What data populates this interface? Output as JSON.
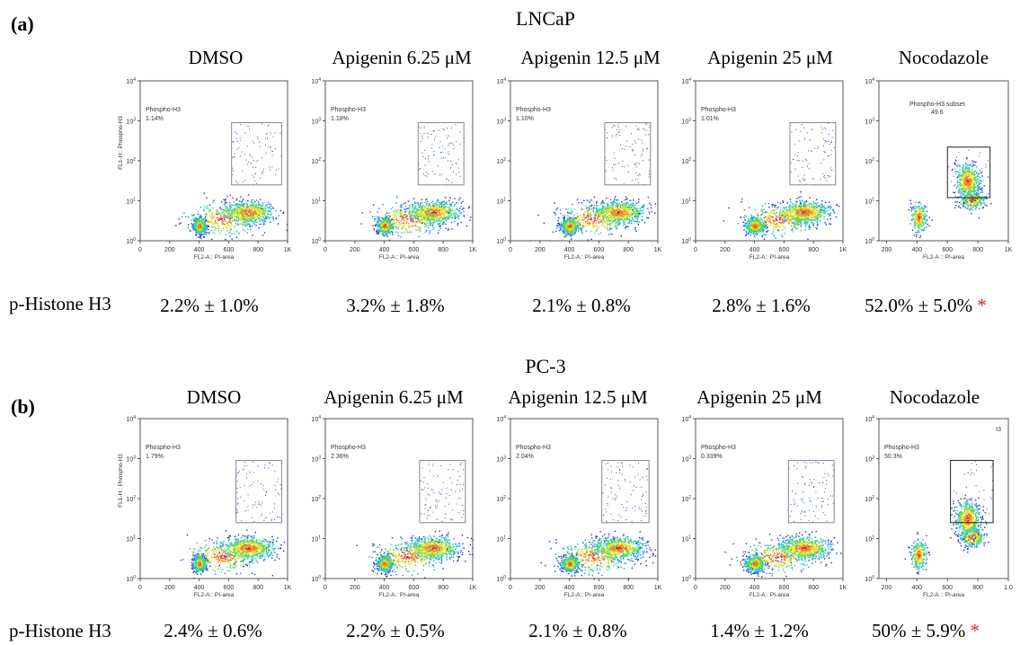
{
  "panels": [
    {
      "letter": "(a)",
      "cell_line": "LNCaP",
      "row_label": "p-Histone H3",
      "columns": [
        {
          "title": "DMSO",
          "value": "2.2%  ±  1.0%",
          "star": ""
        },
        {
          "title": "Apigenin 6.25 μM",
          "value": "3.2%  ±  1.8%",
          "star": ""
        },
        {
          "title": "Apigenin 12.5 μM",
          "value": "2.1% ±   0.8%",
          "star": ""
        },
        {
          "title": "Apigenin 25 μM",
          "value": "2.8%  ±  1.6%",
          "star": ""
        },
        {
          "title": "Nocodazole",
          "value": "52.0%  ±  5.0%",
          "star": "*"
        }
      ]
    },
    {
      "letter": "(b)",
      "cell_line": "PC-3",
      "row_label": "p-Histone H3",
      "columns": [
        {
          "title": "DMSO",
          "value": "2.4% ± 0.6%",
          "star": ""
        },
        {
          "title": "Apigenin 6.25 μM",
          "value": "2.2% ± 0.5%",
          "star": ""
        },
        {
          "title": "Apigenin 12.5 μM",
          "value": "2.1% ± 0.8%",
          "star": ""
        },
        {
          "title": "Apigenin 25 μM",
          "value": "1.4% ± 1.2%",
          "star": ""
        },
        {
          "title": "Nocodazole",
          "value": "50% ± 5.9%",
          "star": "*"
        }
      ]
    }
  ],
  "chart_data": [
    {
      "type": "scatter",
      "panel": "a",
      "title": "DMSO",
      "xlabel": "FL2-A:: PI-area",
      "ylabel": "FL1-H:: Phospho-H3",
      "gate_label": "Phospho-H3",
      "gate_value": "1.14%",
      "xlim": [
        0,
        1000
      ],
      "ylog": true,
      "xticks": [
        "0",
        "200",
        "400",
        "600",
        "800",
        "1K"
      ],
      "yticks": [
        "10^0",
        "10^1",
        "10^2",
        "10^3",
        "10^4"
      ],
      "gate_x": [
        620,
        960
      ],
      "gate_y": [
        25,
        900
      ]
    },
    {
      "type": "scatter",
      "panel": "a",
      "title": "Apigenin 6.25 μM",
      "xlabel": "FL2-A:: PI-area",
      "ylabel": "",
      "gate_label": "Phospho-H3",
      "gate_value": "1.18%",
      "xlim": [
        0,
        1000
      ],
      "ylog": true,
      "xticks": [
        "0",
        "200",
        "400",
        "600",
        "800",
        "1K"
      ],
      "yticks": [
        "10^0",
        "10^1",
        "10^2",
        "10^3",
        "10^4"
      ],
      "gate_x": [
        630,
        940
      ],
      "gate_y": [
        25,
        900
      ]
    },
    {
      "type": "scatter",
      "panel": "a",
      "title": "Apigenin 12.5 μM",
      "xlabel": "FL2-A:: PI-area",
      "ylabel": "",
      "gate_label": "Phospho-H3",
      "gate_value": "1.10%",
      "xlim": [
        0,
        1000
      ],
      "ylog": true,
      "xticks": [
        "0",
        "200",
        "400",
        "600",
        "800",
        "1K"
      ],
      "yticks": [
        "10^0",
        "10^1",
        "10^2",
        "10^3",
        "10^4"
      ],
      "gate_x": [
        640,
        950
      ],
      "gate_y": [
        25,
        900
      ]
    },
    {
      "type": "scatter",
      "panel": "a",
      "title": "Apigenin 25 μM",
      "xlabel": "FL2-A:: PI-area",
      "ylabel": "",
      "gate_label": "Phospho-H3",
      "gate_value": "1.01%",
      "xlim": [
        0,
        1000
      ],
      "ylog": true,
      "xticks": [
        "0",
        "200",
        "400",
        "600",
        "800",
        "1K"
      ],
      "yticks": [
        "10^0",
        "10^1",
        "10^2",
        "10^3",
        "10^4"
      ],
      "gate_x": [
        640,
        950
      ],
      "gate_y": [
        25,
        900
      ]
    },
    {
      "type": "scatter",
      "panel": "a",
      "title": "Nocodazole",
      "xlabel": "FL2-A :: PI-area",
      "ylabel": "",
      "gate_label": "Phospho-H3 subset",
      "gate_value": "49.6",
      "xlim": [
        150,
        1000
      ],
      "ylog": true,
      "xticks": [
        "200",
        "400",
        "600",
        "800",
        "1K"
      ],
      "yticks": [
        "10^0",
        "10^1",
        "10^2",
        "10^3",
        "10^4"
      ],
      "gate_x": [
        600,
        880
      ],
      "gate_y": [
        12,
        220
      ]
    },
    {
      "type": "scatter",
      "panel": "b",
      "title": "DMSO",
      "xlabel": "FL2-A:: PI-area",
      "ylabel": "FL1-H:: Phospho-H3",
      "gate_label": "Phospho-H3",
      "gate_value": "1.79%",
      "xlim": [
        0,
        1000
      ],
      "ylog": true,
      "xticks": [
        "0",
        "200",
        "400",
        "600",
        "800",
        "1K"
      ],
      "yticks": [
        "10^0",
        "10^1",
        "10^2",
        "10^3",
        "10^4"
      ],
      "gate_x": [
        650,
        960
      ],
      "gate_y": [
        25,
        900
      ]
    },
    {
      "type": "scatter",
      "panel": "b",
      "title": "Apigenin 6.25 μM",
      "xlabel": "FL2-A:: PI-area",
      "ylabel": "",
      "gate_label": "Phospho-H3",
      "gate_value": "2.36%",
      "xlim": [
        0,
        1000
      ],
      "ylog": true,
      "xticks": [
        "0",
        "200",
        "400",
        "600",
        "800",
        "1K"
      ],
      "yticks": [
        "10^0",
        "10^1",
        "10^2",
        "10^3",
        "10^4"
      ],
      "gate_x": [
        640,
        950
      ],
      "gate_y": [
        25,
        900
      ]
    },
    {
      "type": "scatter",
      "panel": "b",
      "title": "Apigenin 12.5 μM",
      "xlabel": "FL2-A:: PI-area",
      "ylabel": "",
      "gate_label": "Phospho-H3",
      "gate_value": "2.04%",
      "xlim": [
        0,
        1000
      ],
      "ylog": true,
      "xticks": [
        "0",
        "200",
        "400",
        "600",
        "800",
        "1K"
      ],
      "yticks": [
        "10^0",
        "10^1",
        "10^2",
        "10^3",
        "10^4"
      ],
      "gate_x": [
        620,
        940
      ],
      "gate_y": [
        25,
        900
      ]
    },
    {
      "type": "scatter",
      "panel": "b",
      "title": "Apigenin 25 μM",
      "xlabel": "FL2-A:: PI-area",
      "ylabel": "",
      "gate_label": "Phospho-H3",
      "gate_value": "0.339%",
      "xlim": [
        0,
        1000
      ],
      "ylog": true,
      "xticks": [
        "0",
        "200",
        "400",
        "600",
        "800",
        "1K"
      ],
      "yticks": [
        "10^0",
        "10^1",
        "10^2",
        "10^3",
        "10^4"
      ],
      "gate_x": [
        630,
        940
      ],
      "gate_y": [
        25,
        900
      ]
    },
    {
      "type": "scatter",
      "panel": "b",
      "title": "Nocodazole",
      "xlabel": "FL2-A :: PI-area",
      "ylabel": "",
      "gate_label": "Phospho-H3",
      "gate_value": "50.3%",
      "gate_extra": "I3",
      "xlim": [
        150,
        1000
      ],
      "ylog": true,
      "xticks": [
        "200",
        "400",
        "600",
        "800",
        "1.0"
      ],
      "yticks": [
        "10^0",
        "10^1",
        "10^2",
        "10^3",
        "10^4"
      ],
      "gate_x": [
        620,
        900
      ],
      "gate_y": [
        25,
        900
      ]
    }
  ]
}
